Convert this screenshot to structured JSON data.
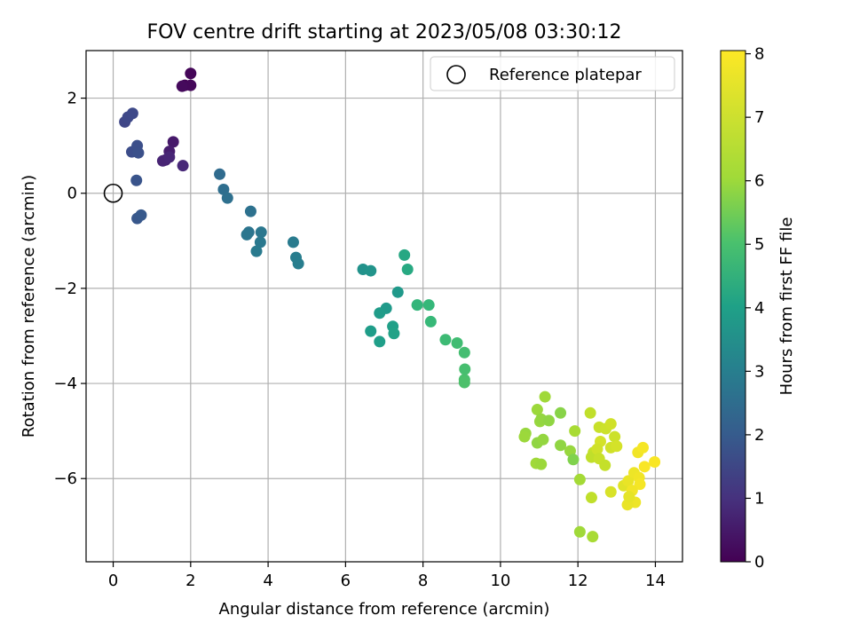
{
  "chart_data": {
    "type": "scatter",
    "title": "FOV centre drift starting at 2023/05/08 03:30:12",
    "xlabel": "Angular distance from reference (arcmin)",
    "ylabel": "Rotation from reference (arcmin)",
    "xlim": [
      -0.7,
      14.7
    ],
    "ylim": [
      -7.75,
      3.0
    ],
    "xticks": [
      0,
      2,
      4,
      6,
      8,
      10,
      12,
      14
    ],
    "yticks": [
      2,
      0,
      -2,
      -4,
      -6
    ],
    "xtick_labels": [
      "0",
      "2",
      "4",
      "6",
      "8",
      "10",
      "12",
      "14"
    ],
    "ytick_labels": [
      "2",
      "0",
      "−2",
      "−4",
      "−6"
    ],
    "grid": true,
    "legend": {
      "label": "Reference platepar",
      "placement": "top-right"
    },
    "reference_point": {
      "x": 0,
      "y": 0
    },
    "colorbar": {
      "label": "Hours from first FF file",
      "colormap": "viridis",
      "range": [
        0,
        8.05
      ],
      "ticks": [
        0,
        1,
        2,
        3,
        4,
        5,
        6,
        7,
        8
      ],
      "tick_labels": [
        "0",
        "1",
        "2",
        "3",
        "4",
        "5",
        "6",
        "7",
        "8"
      ]
    },
    "points": [
      {
        "x": 1.85,
        "y": 2.27,
        "c": 0.05
      },
      {
        "x": 2.0,
        "y": 2.52,
        "c": 0.1
      },
      {
        "x": 2.0,
        "y": 2.27,
        "c": 0.15
      },
      {
        "x": 1.78,
        "y": 2.25,
        "c": 0.2
      },
      {
        "x": 1.55,
        "y": 1.08,
        "c": 0.55
      },
      {
        "x": 1.45,
        "y": 0.88,
        "c": 0.65
      },
      {
        "x": 1.35,
        "y": 0.7,
        "c": 0.75
      },
      {
        "x": 1.28,
        "y": 0.68,
        "c": 0.8
      },
      {
        "x": 1.45,
        "y": 0.76,
        "c": 0.85
      },
      {
        "x": 1.8,
        "y": 0.58,
        "c": 0.9
      },
      {
        "x": 0.3,
        "y": 1.5,
        "c": 1.7
      },
      {
        "x": 0.38,
        "y": 1.6,
        "c": 1.75
      },
      {
        "x": 0.5,
        "y": 1.68,
        "c": 1.8
      },
      {
        "x": 0.48,
        "y": 0.87,
        "c": 1.9
      },
      {
        "x": 0.62,
        "y": 1.0,
        "c": 1.95
      },
      {
        "x": 0.65,
        "y": 0.85,
        "c": 2.0
      },
      {
        "x": 0.6,
        "y": 0.27,
        "c": 2.1
      },
      {
        "x": 0.62,
        "y": -0.53,
        "c": 2.2
      },
      {
        "x": 0.72,
        "y": -0.46,
        "c": 2.25
      },
      {
        "x": 2.75,
        "y": 0.4,
        "c": 2.8
      },
      {
        "x": 2.85,
        "y": 0.08,
        "c": 2.9
      },
      {
        "x": 2.95,
        "y": -0.1,
        "c": 2.95
      },
      {
        "x": 3.55,
        "y": -0.38,
        "c": 3.0
      },
      {
        "x": 3.5,
        "y": -0.82,
        "c": 3.1
      },
      {
        "x": 3.45,
        "y": -0.87,
        "c": 3.15
      },
      {
        "x": 3.82,
        "y": -0.82,
        "c": 3.2
      },
      {
        "x": 3.8,
        "y": -1.03,
        "c": 3.25
      },
      {
        "x": 3.7,
        "y": -1.22,
        "c": 3.3
      },
      {
        "x": 4.65,
        "y": -1.03,
        "c": 3.35
      },
      {
        "x": 4.72,
        "y": -1.35,
        "c": 3.4
      },
      {
        "x": 4.78,
        "y": -1.48,
        "c": 3.45
      },
      {
        "x": 6.45,
        "y": -1.6,
        "c": 4.1
      },
      {
        "x": 6.65,
        "y": -1.63,
        "c": 4.15
      },
      {
        "x": 7.35,
        "y": -2.08,
        "c": 4.3
      },
      {
        "x": 7.05,
        "y": -2.42,
        "c": 4.35
      },
      {
        "x": 6.88,
        "y": -2.52,
        "c": 4.4
      },
      {
        "x": 6.65,
        "y": -2.9,
        "c": 4.45
      },
      {
        "x": 6.88,
        "y": -3.12,
        "c": 4.5
      },
      {
        "x": 7.22,
        "y": -2.8,
        "c": 4.55
      },
      {
        "x": 7.25,
        "y": -2.95,
        "c": 4.6
      },
      {
        "x": 7.52,
        "y": -1.3,
        "c": 4.8
      },
      {
        "x": 7.6,
        "y": -1.6,
        "c": 4.85
      },
      {
        "x": 7.85,
        "y": -2.35,
        "c": 5.3
      },
      {
        "x": 8.15,
        "y": -2.35,
        "c": 5.35
      },
      {
        "x": 8.2,
        "y": -2.7,
        "c": 5.4
      },
      {
        "x": 8.58,
        "y": -3.08,
        "c": 5.5
      },
      {
        "x": 8.88,
        "y": -3.15,
        "c": 5.55
      },
      {
        "x": 9.07,
        "y": -3.35,
        "c": 5.6
      },
      {
        "x": 9.08,
        "y": -3.7,
        "c": 5.65
      },
      {
        "x": 9.07,
        "y": -3.92,
        "c": 5.7
      },
      {
        "x": 9.07,
        "y": -3.98,
        "c": 5.75
      },
      {
        "x": 11.02,
        "y": -4.8,
        "c": 6.8
      },
      {
        "x": 11.15,
        "y": -4.28,
        "c": 6.9
      },
      {
        "x": 10.95,
        "y": -4.55,
        "c": 6.85
      },
      {
        "x": 11.05,
        "y": -4.75,
        "c": 6.75
      },
      {
        "x": 11.25,
        "y": -4.78,
        "c": 6.7
      },
      {
        "x": 11.55,
        "y": -4.62,
        "c": 6.6
      },
      {
        "x": 10.65,
        "y": -5.05,
        "c": 6.8
      },
      {
        "x": 10.62,
        "y": -5.12,
        "c": 6.85
      },
      {
        "x": 10.95,
        "y": -5.25,
        "c": 6.7
      },
      {
        "x": 11.1,
        "y": -5.18,
        "c": 6.75
      },
      {
        "x": 11.55,
        "y": -5.3,
        "c": 6.7
      },
      {
        "x": 11.8,
        "y": -5.42,
        "c": 6.8
      },
      {
        "x": 11.88,
        "y": -5.6,
        "c": 6.5
      },
      {
        "x": 11.92,
        "y": -5.0,
        "c": 7.0
      },
      {
        "x": 10.92,
        "y": -5.68,
        "c": 6.9
      },
      {
        "x": 11.05,
        "y": -5.7,
        "c": 6.85
      },
      {
        "x": 12.05,
        "y": -6.02,
        "c": 6.95
      },
      {
        "x": 12.35,
        "y": -6.4,
        "c": 7.3
      },
      {
        "x": 12.05,
        "y": -7.12,
        "c": 6.9
      },
      {
        "x": 12.38,
        "y": -7.22,
        "c": 7.0
      },
      {
        "x": 12.32,
        "y": -4.62,
        "c": 7.3
      },
      {
        "x": 12.55,
        "y": -4.92,
        "c": 7.4
      },
      {
        "x": 12.72,
        "y": -4.95,
        "c": 7.45
      },
      {
        "x": 12.85,
        "y": -4.85,
        "c": 7.5
      },
      {
        "x": 12.95,
        "y": -5.12,
        "c": 7.45
      },
      {
        "x": 12.58,
        "y": -5.22,
        "c": 7.55
      },
      {
        "x": 12.4,
        "y": -5.45,
        "c": 7.35
      },
      {
        "x": 12.35,
        "y": -5.55,
        "c": 7.3
      },
      {
        "x": 12.5,
        "y": -5.38,
        "c": 7.5
      },
      {
        "x": 12.55,
        "y": -5.58,
        "c": 7.4
      },
      {
        "x": 12.7,
        "y": -5.72,
        "c": 7.35
      },
      {
        "x": 12.85,
        "y": -5.35,
        "c": 7.5
      },
      {
        "x": 13.0,
        "y": -5.32,
        "c": 7.55
      },
      {
        "x": 12.85,
        "y": -6.28,
        "c": 7.6
      },
      {
        "x": 13.18,
        "y": -6.15,
        "c": 7.7
      },
      {
        "x": 13.3,
        "y": -6.05,
        "c": 7.8
      },
      {
        "x": 13.45,
        "y": -5.88,
        "c": 7.85
      },
      {
        "x": 13.55,
        "y": -5.45,
        "c": 7.9
      },
      {
        "x": 13.68,
        "y": -5.35,
        "c": 7.95
      },
      {
        "x": 13.72,
        "y": -5.75,
        "c": 8.0
      },
      {
        "x": 13.98,
        "y": -5.65,
        "c": 8.0
      },
      {
        "x": 13.58,
        "y": -5.98,
        "c": 7.9
      },
      {
        "x": 13.6,
        "y": -6.12,
        "c": 7.95
      },
      {
        "x": 13.4,
        "y": -6.25,
        "c": 7.9
      },
      {
        "x": 13.48,
        "y": -6.5,
        "c": 7.85
      },
      {
        "x": 13.28,
        "y": -6.55,
        "c": 7.8
      },
      {
        "x": 13.32,
        "y": -6.38,
        "c": 7.75
      }
    ]
  }
}
